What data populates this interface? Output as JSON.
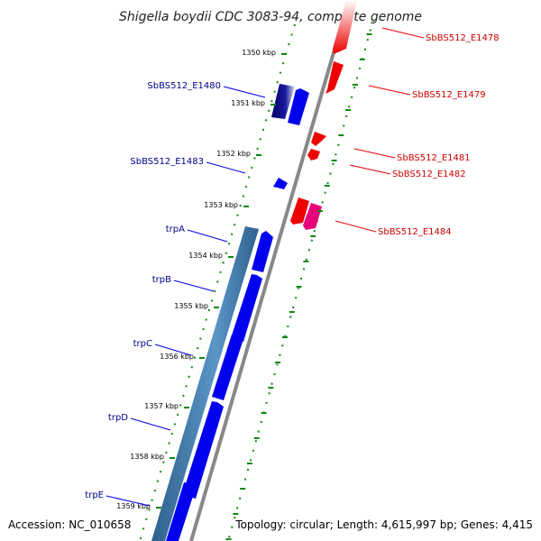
{
  "title": "Shigella boydii CDC 3083-94, complete genome",
  "footer": {
    "accession": "Accession: NC_010658",
    "topology": "Topology: circular; Length: 4,615,997 bp; Genes: 4,415"
  },
  "ruler": {
    "unit": "kbp",
    "ticks": [
      {
        "label": "1350 kbp"
      },
      {
        "label": "1351 kbp"
      },
      {
        "label": "1352 kbp"
      },
      {
        "label": "1353 kbp"
      },
      {
        "label": "1354 kbp"
      },
      {
        "label": "1355 kbp"
      },
      {
        "label": "1356 kbp"
      },
      {
        "label": "1357 kbp"
      },
      {
        "label": "1358 kbp"
      },
      {
        "label": "1359 kbp"
      }
    ]
  },
  "colors": {
    "forward_gene": "#0000ee",
    "reverse_gene": "#ee0000",
    "pseudo_gene": "#e8007a",
    "operon": "#4a84b4",
    "backbone": "#888888",
    "dotted_guide": "#118811",
    "forward_label": "#00008b",
    "reverse_label": "#cc0000"
  },
  "forward_labels": [
    {
      "name": "SbBS512_E1480"
    },
    {
      "name": "SbBS512_E1483"
    },
    {
      "name": "trpA"
    },
    {
      "name": "trpB"
    },
    {
      "name": "trpC"
    },
    {
      "name": "trpD"
    },
    {
      "name": "trpE"
    }
  ],
  "reverse_labels": [
    {
      "name": "SbBS512_E1478"
    },
    {
      "name": "SbBS512_E1479"
    },
    {
      "name": "SbBS512_E1481"
    },
    {
      "name": "SbBS512_E1482"
    },
    {
      "name": "SbBS512_E1484"
    }
  ]
}
